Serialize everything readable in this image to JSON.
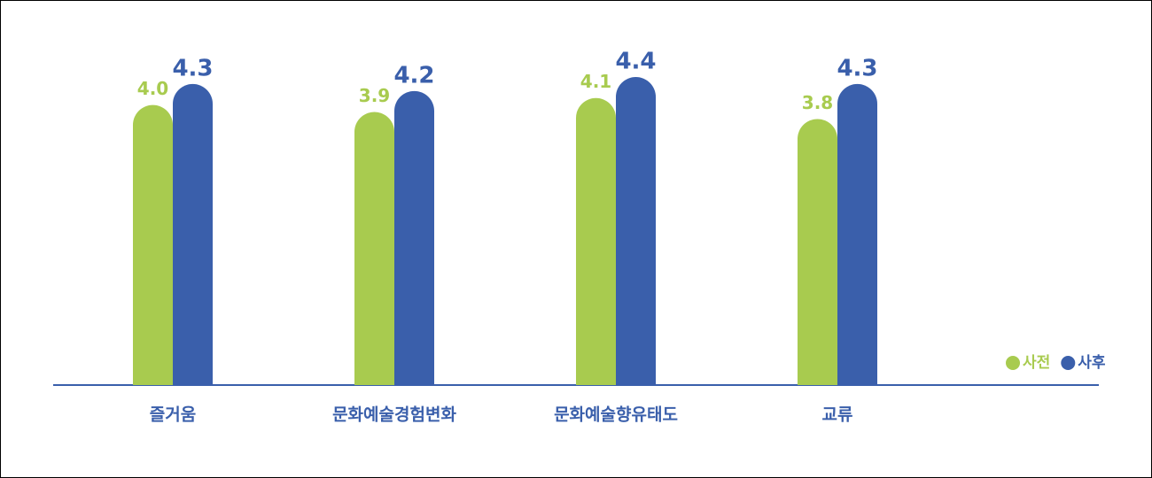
{
  "chart_data": {
    "type": "bar",
    "categories": [
      "즐거움",
      "문화예술경험변화",
      "문화예술향유태도",
      "교류"
    ],
    "series": [
      {
        "name": "사전",
        "color": "#a8cb4f",
        "values": [
          4.0,
          3.9,
          4.1,
          3.8
        ],
        "value_labels": [
          "4.0",
          "3.9",
          "4.1",
          "3.8"
        ]
      },
      {
        "name": "사후",
        "color": "#3a5fab",
        "values": [
          4.3,
          4.2,
          4.4,
          4.3
        ],
        "value_labels": [
          "4.3",
          "4.2",
          "4.4",
          "4.3"
        ]
      }
    ],
    "ylim": [
      0,
      5.5
    ],
    "grid": false,
    "legend": "bottom-right"
  }
}
